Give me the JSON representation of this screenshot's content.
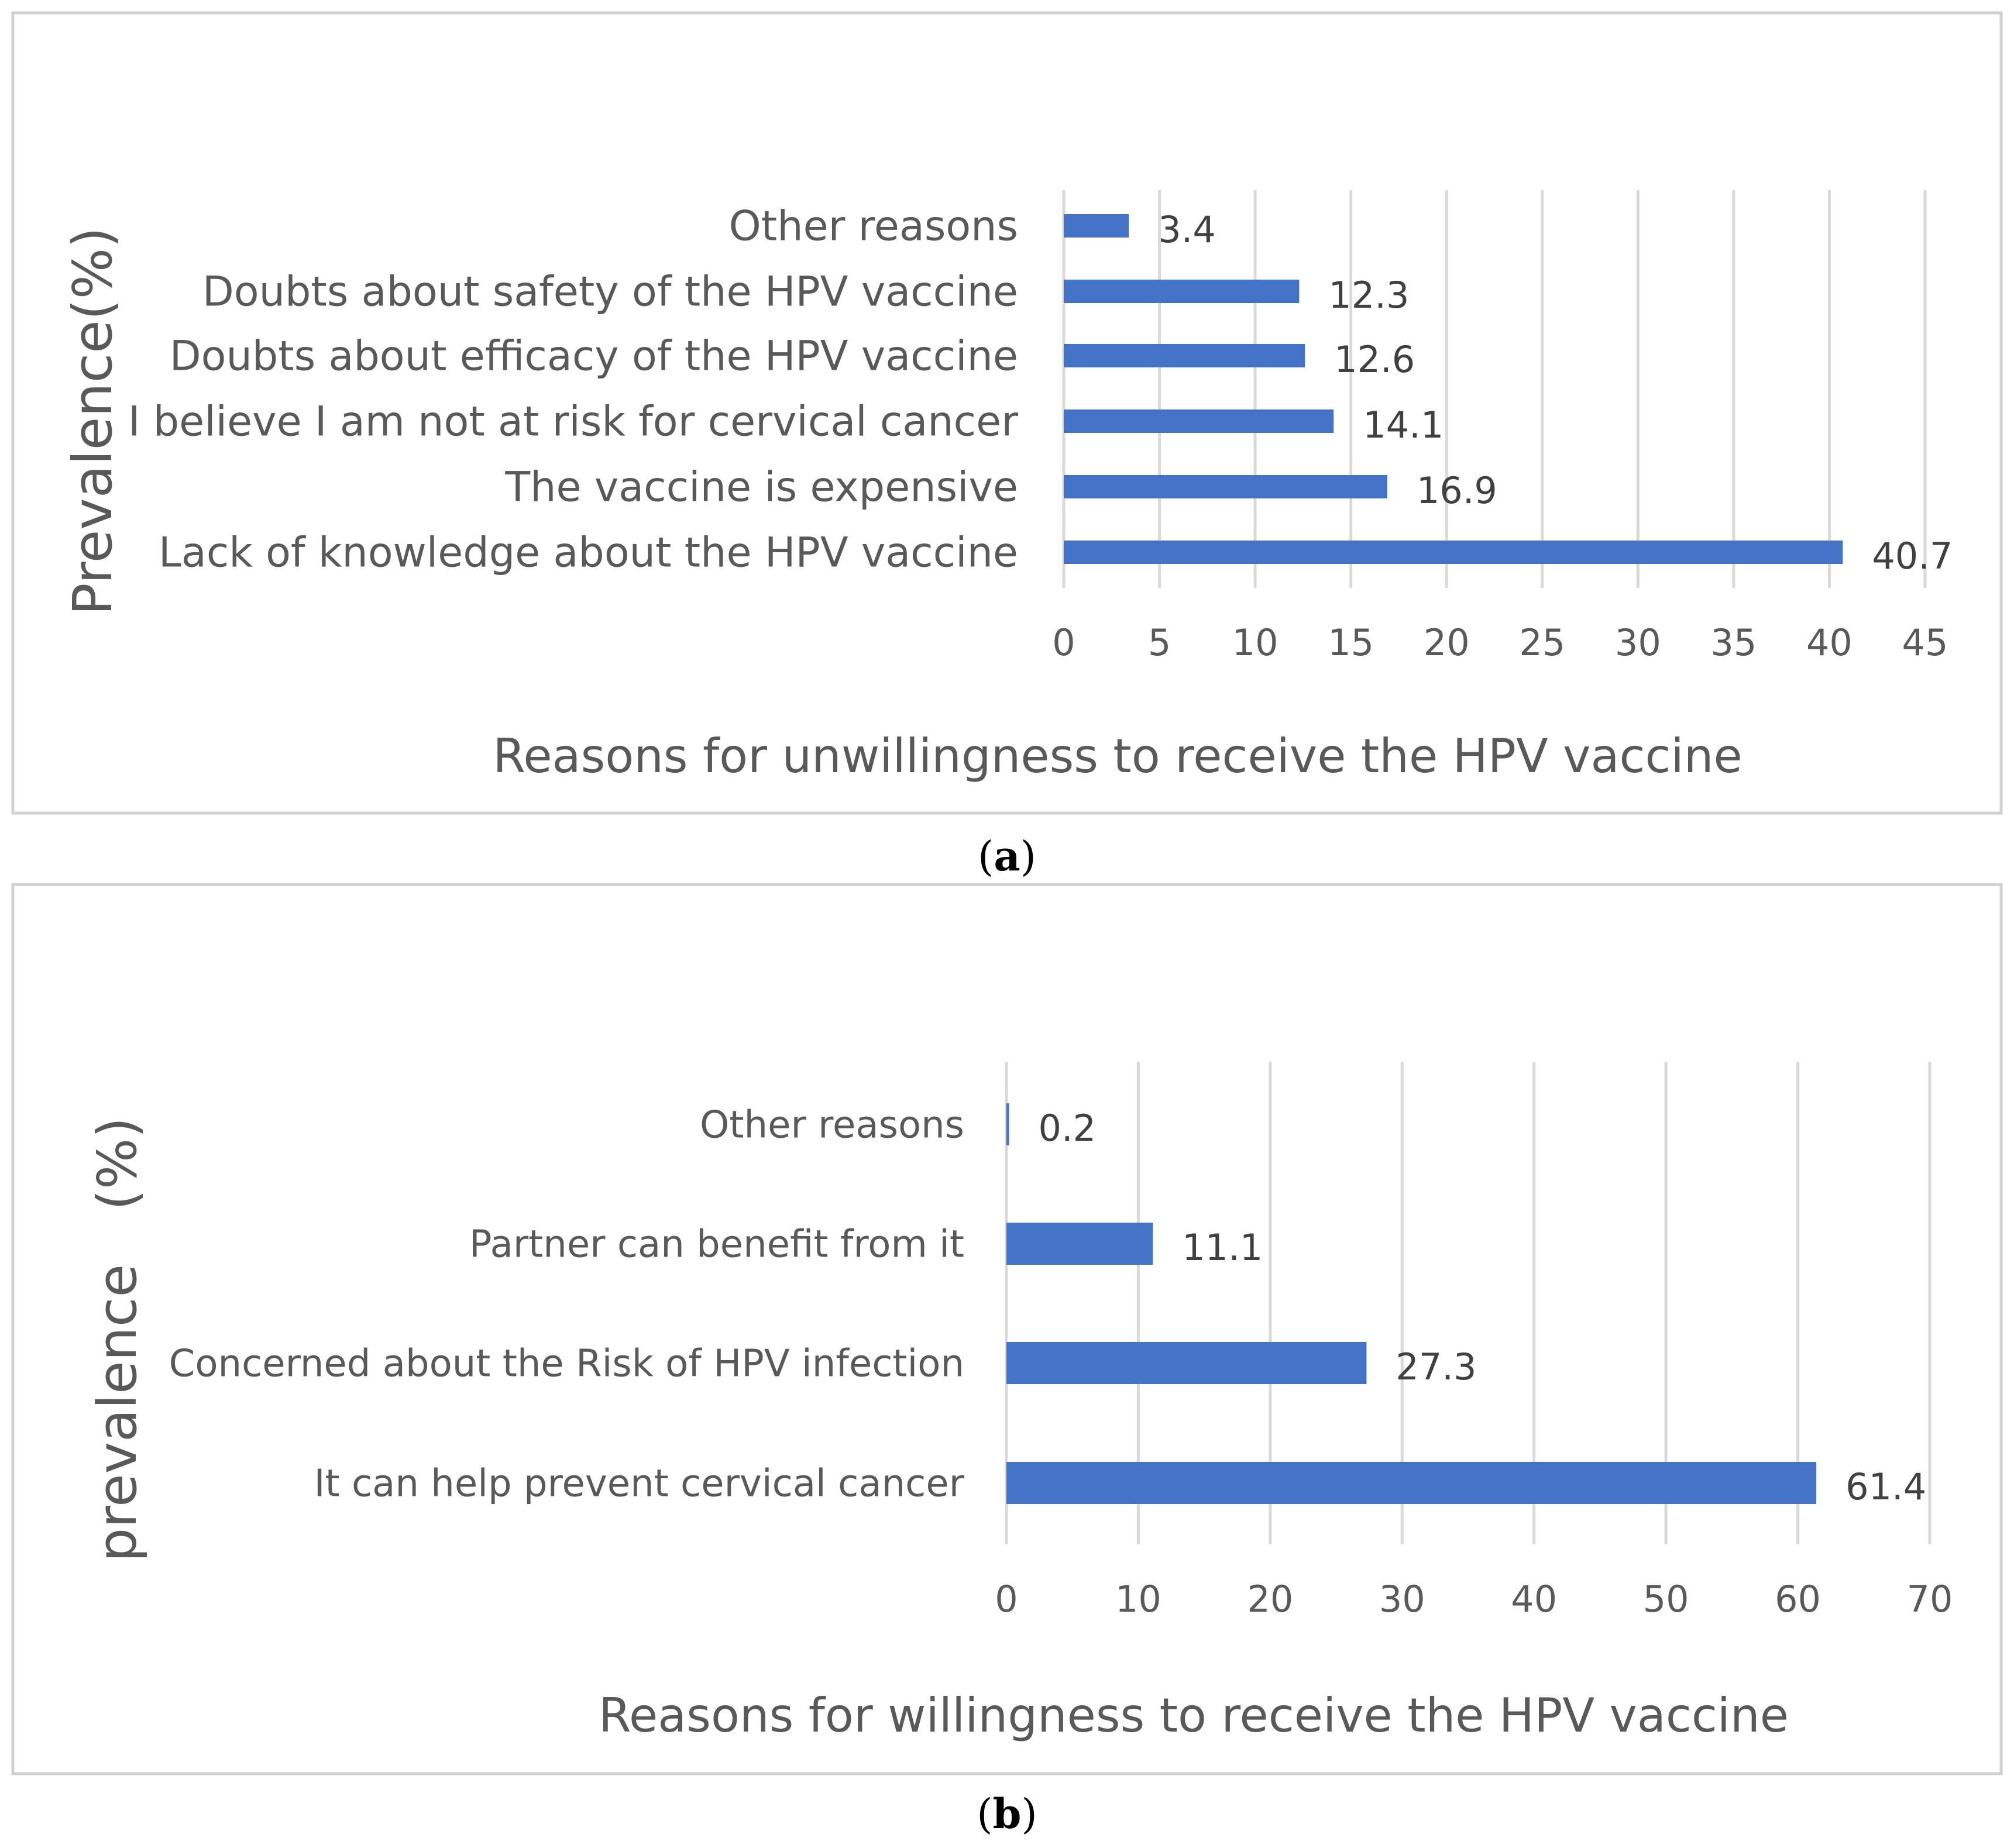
{
  "chart_data": [
    {
      "type": "bar",
      "orientation": "horizontal",
      "panel_label": "(a)",
      "categories": [
        "Other reasons",
        "Doubts about safety of the HPV vaccine",
        "Doubts about efficacy of the HPV vaccine",
        "I believe I am not at risk for cervical cancer",
        "The vaccine is expensive",
        "Lack of knowledge about the HPV vaccine"
      ],
      "values": [
        3.4,
        12.3,
        12.6,
        14.1,
        16.9,
        40.7
      ],
      "value_labels": [
        "3.4",
        "12.3",
        "12.6",
        "14.1",
        "16.9",
        "40.7"
      ],
      "xlim": [
        0,
        45
      ],
      "xticks": [
        "0",
        "5",
        "10",
        "15",
        "20",
        "25",
        "30",
        "35",
        "40",
        "45"
      ],
      "xlabel": "Reasons for unwillingness to receive the HPV vaccine",
      "ylabel": "Prevalence(%)",
      "bar_color": "#4472c4",
      "grid": true
    },
    {
      "type": "bar",
      "orientation": "horizontal",
      "panel_label": "(b)",
      "categories": [
        "Other reasons",
        "Partner can benefit from it",
        "Concerned about the Risk of HPV infection",
        "It can help prevent cervical cancer"
      ],
      "values": [
        0.2,
        11.1,
        27.3,
        61.4
      ],
      "value_labels": [
        "0.2",
        "11.1",
        "27.3",
        "61.4"
      ],
      "xlim": [
        0,
        70
      ],
      "xticks": [
        "0",
        "10",
        "20",
        "30",
        "40",
        "50",
        "60",
        "70"
      ],
      "xlabel": "Reasons for willingness to receive the HPV vaccine",
      "ylabel": "prevalence　(%)",
      "bar_color": "#4472c4",
      "grid": true
    }
  ]
}
